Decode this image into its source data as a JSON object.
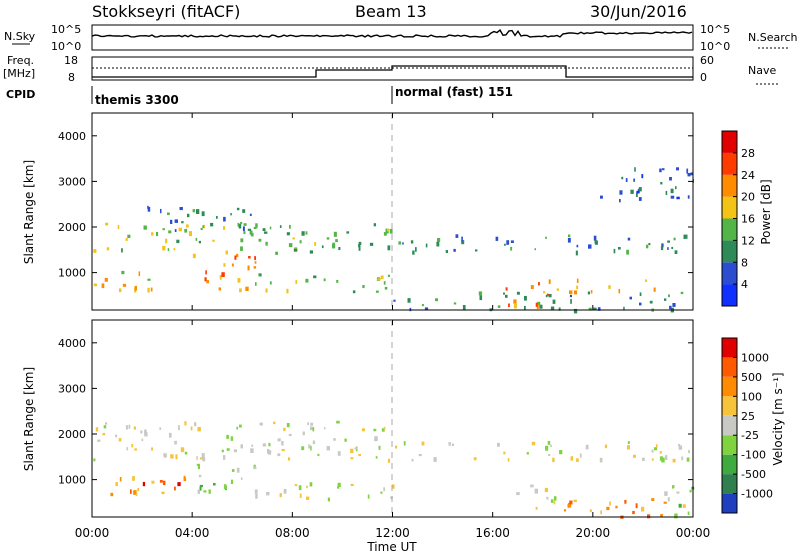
{
  "header": {
    "radar": "Stokkseyri (fitACF)",
    "beam": "Beam 13",
    "date": "30/Jun/2016"
  },
  "noise_panel": {
    "left_label": "N.Sky",
    "right_label": "N.Search",
    "left_ticks": [
      "10^5",
      "10^0"
    ],
    "right_ticks": [
      "10^5",
      "10^0"
    ]
  },
  "freq_panel": {
    "left_label": "Freq.",
    "left_unit": "[MHz]",
    "right_label": "Nave",
    "left_ticks": [
      "18",
      "8"
    ],
    "right_ticks": [
      "60",
      "0"
    ]
  },
  "cpid_panel": {
    "label": "CPID",
    "segments": [
      {
        "name": "themis 3300",
        "start_hour": 0
      },
      {
        "name": "normal (fast) 151",
        "start_hour": 12
      }
    ]
  },
  "chart_data": [
    {
      "type": "heatmap",
      "title": "Power",
      "ylabel": "Slant Range [km]",
      "xlabel": "Time UT",
      "x_ticks": [
        "00:00",
        "04:00",
        "08:00",
        "12:00",
        "16:00",
        "20:00",
        "00:00"
      ],
      "x_range_hours": [
        0,
        24
      ],
      "y_ticks": [
        1000,
        2000,
        3000,
        4000
      ],
      "ylim": [
        180,
        4500
      ],
      "colorbar": {
        "label": "Power [dB]",
        "ticks": [
          4,
          8,
          12,
          16,
          20,
          24,
          28
        ],
        "colors": [
          "#1030ff",
          "#2a4ecf",
          "#2e8b57",
          "#53b548",
          "#f3c316",
          "#ff8c00",
          "#ff3b00",
          "#e00000"
        ]
      },
      "scatter_regions": [
        {
          "t0": 0.0,
          "t1": 12.0,
          "r0": 1450,
          "r1": 2100,
          "level": 3
        },
        {
          "t0": 2.0,
          "t1": 7.0,
          "r0": 1900,
          "r1": 2500,
          "level": 2
        },
        {
          "t0": 0.0,
          "t1": 2.8,
          "r0": 600,
          "r1": 1100,
          "level": 4
        },
        {
          "t0": 4.0,
          "t1": 6.5,
          "r0": 600,
          "r1": 1450,
          "level": 5
        },
        {
          "t0": 6.5,
          "t1": 12.0,
          "r0": 600,
          "r1": 1000,
          "level": 3
        },
        {
          "t0": 12.0,
          "t1": 24.0,
          "r0": 1450,
          "r1": 1850,
          "level": 2
        },
        {
          "t0": 12.0,
          "t1": 24.0,
          "r0": 200,
          "r1": 600,
          "level": 2
        },
        {
          "t0": 16.5,
          "t1": 18.5,
          "r0": 300,
          "r1": 900,
          "level": 5
        },
        {
          "t0": 18.5,
          "t1": 22.5,
          "r0": 600,
          "r1": 900,
          "level": 4
        },
        {
          "t0": 20.0,
          "t1": 24.0,
          "r0": 2600,
          "r1": 3400,
          "level": 1
        }
      ]
    },
    {
      "type": "heatmap",
      "title": "Velocity",
      "ylabel": "Slant Range [km]",
      "xlabel": "Time UT",
      "x_ticks": [
        "00:00",
        "04:00",
        "08:00",
        "12:00",
        "16:00",
        "20:00",
        "00:00"
      ],
      "x_range_hours": [
        0,
        24
      ],
      "y_ticks": [
        1000,
        2000,
        3000,
        4000
      ],
      "ylim": [
        180,
        4500
      ],
      "colorbar": {
        "label": "Velocity [m s⁻¹]",
        "ticks": [
          1000,
          500,
          100,
          25,
          -25,
          -100,
          -500,
          -1000
        ],
        "colors": [
          "#1f3fbf",
          "#2f7f4f",
          "#3faa3f",
          "#7fd33f",
          "#c8c8c4",
          "#f6c33a",
          "#ff8c00",
          "#ff5a00",
          "#e00000"
        ]
      },
      "scatter_regions": [
        {
          "t0": 0.0,
          "t1": 12.0,
          "r0": 1450,
          "r1": 2300,
          "level": 4
        },
        {
          "t0": 0.0,
          "t1": 2.8,
          "r0": 700,
          "r1": 1100,
          "level": 6
        },
        {
          "t0": 2.0,
          "t1": 4.0,
          "r0": 700,
          "r1": 1100,
          "level": 7
        },
        {
          "t0": 4.0,
          "t1": 6.5,
          "r0": 700,
          "r1": 1450,
          "level": 3
        },
        {
          "t0": 6.5,
          "t1": 12.0,
          "r0": 600,
          "r1": 1000,
          "level": 4
        },
        {
          "t0": 12.0,
          "t1": 24.0,
          "r0": 1450,
          "r1": 1850,
          "level": 4
        },
        {
          "t0": 16.5,
          "t1": 18.5,
          "r0": 400,
          "r1": 900,
          "level": 4
        },
        {
          "t0": 18.5,
          "t1": 24.0,
          "r0": 200,
          "r1": 600,
          "level": 6
        },
        {
          "t0": 22.5,
          "t1": 24.0,
          "r0": 200,
          "r1": 900,
          "level": 3
        }
      ]
    }
  ],
  "footer": {
    "time_label": "Time UT"
  }
}
